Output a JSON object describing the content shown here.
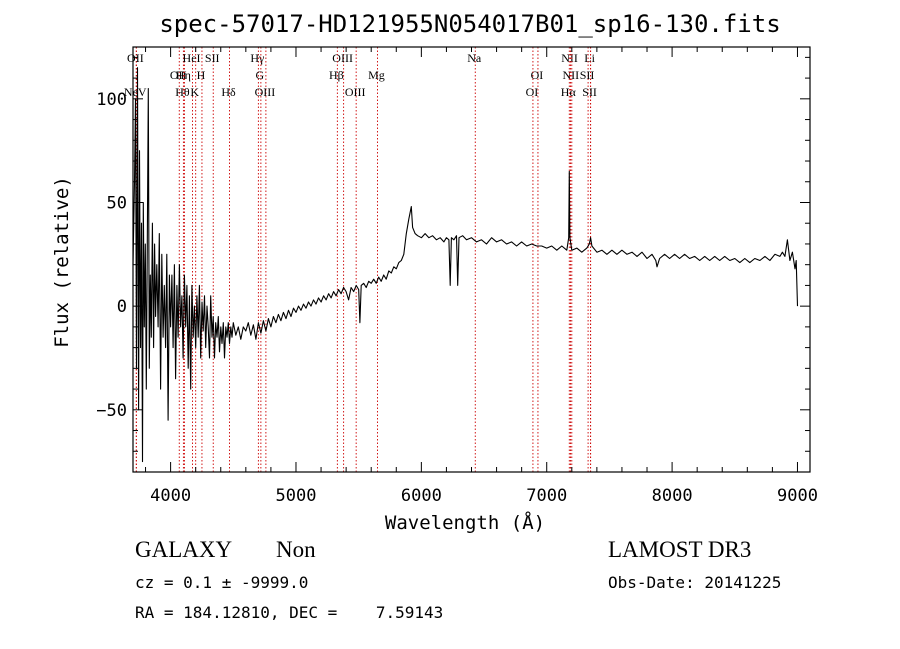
{
  "chart_data": {
    "type": "line",
    "title": "spec-57017-HD121955N054017B01_sp16-130.fits",
    "xlabel": "Wavelength (Å)",
    "ylabel": "Flux (relative)",
    "xlim": [
      3700,
      9100
    ],
    "ylim": [
      -80,
      125
    ],
    "xticks": [
      4000,
      5000,
      6000,
      7000,
      8000,
      9000
    ],
    "yticks": [
      -50,
      0,
      50,
      100
    ],
    "x_tick_labels": [
      "4000",
      "5000",
      "6000",
      "7000",
      "8000",
      "9000"
    ],
    "y_tick_labels": [
      "−50",
      "0",
      "50",
      "100"
    ],
    "series": [
      {
        "name": "spectrum",
        "points": [
          [
            3700,
            20
          ],
          [
            3712,
            60
          ],
          [
            3720,
            100
          ],
          [
            3728,
            -30
          ],
          [
            3736,
            115
          ],
          [
            3745,
            -50
          ],
          [
            3752,
            75
          ],
          [
            3760,
            -20
          ],
          [
            3768,
            40
          ],
          [
            3776,
            -75
          ],
          [
            3782,
            50
          ],
          [
            3790,
            -10
          ],
          [
            3798,
            30
          ],
          [
            3806,
            -40
          ],
          [
            3814,
            30
          ],
          [
            3822,
            105
          ],
          [
            3830,
            -30
          ],
          [
            3838,
            15
          ],
          [
            3846,
            -15
          ],
          [
            3855,
            40
          ],
          [
            3864,
            -20
          ],
          [
            3872,
            30
          ],
          [
            3880,
            -5
          ],
          [
            3890,
            20
          ],
          [
            3900,
            -10
          ],
          [
            3910,
            35
          ],
          [
            3920,
            -40
          ],
          [
            3930,
            25
          ],
          [
            3940,
            -15
          ],
          [
            3950,
            10
          ],
          [
            3960,
            -20
          ],
          [
            3970,
            25
          ],
          [
            3980,
            -55
          ],
          [
            3990,
            15
          ],
          [
            4000,
            -10
          ],
          [
            4010,
            15
          ],
          [
            4020,
            -20
          ],
          [
            4030,
            20
          ],
          [
            4040,
            -35
          ],
          [
            4050,
            10
          ],
          [
            4060,
            -15
          ],
          [
            4070,
            20
          ],
          [
            4080,
            -10
          ],
          [
            4090,
            5
          ],
          [
            4100,
            -25
          ],
          [
            4110,
            15
          ],
          [
            4120,
            -10
          ],
          [
            4130,
            10
          ],
          [
            4140,
            -30
          ],
          [
            4150,
            5
          ],
          [
            4160,
            -40
          ],
          [
            4170,
            10
          ],
          [
            4180,
            -15
          ],
          [
            4190,
            0
          ],
          [
            4200,
            -20
          ],
          [
            4210,
            5
          ],
          [
            4220,
            -15
          ],
          [
            4230,
            10
          ],
          [
            4240,
            -25
          ],
          [
            4250,
            2
          ],
          [
            4260,
            -12
          ],
          [
            4270,
            5
          ],
          [
            4280,
            -20
          ],
          [
            4290,
            0
          ],
          [
            4300,
            -10
          ],
          [
            4310,
            -25
          ],
          [
            4320,
            5
          ],
          [
            4330,
            -15
          ],
          [
            4340,
            -5
          ],
          [
            4350,
            -25
          ],
          [
            4360,
            -8
          ],
          [
            4370,
            -15
          ],
          [
            4380,
            -5
          ],
          [
            4390,
            -22
          ],
          [
            4400,
            -10
          ],
          [
            4410,
            -18
          ],
          [
            4420,
            -8
          ],
          [
            4430,
            -25
          ],
          [
            4440,
            -10
          ],
          [
            4450,
            -15
          ],
          [
            4460,
            -8
          ],
          [
            4470,
            -18
          ],
          [
            4480,
            -10
          ],
          [
            4490,
            -15
          ],
          [
            4500,
            -8
          ],
          [
            4520,
            -14
          ],
          [
            4540,
            -10
          ],
          [
            4560,
            -16
          ],
          [
            4580,
            -10
          ],
          [
            4600,
            -12
          ],
          [
            4620,
            -8
          ],
          [
            4640,
            -14
          ],
          [
            4660,
            -9
          ],
          [
            4680,
            -16
          ],
          [
            4700,
            -8
          ],
          [
            4720,
            -13
          ],
          [
            4740,
            -7
          ],
          [
            4760,
            -12
          ],
          [
            4780,
            -6
          ],
          [
            4800,
            -10
          ],
          [
            4820,
            -5
          ],
          [
            4840,
            -8
          ],
          [
            4860,
            -4
          ],
          [
            4880,
            -7
          ],
          [
            4900,
            -3
          ],
          [
            4920,
            -6
          ],
          [
            4940,
            -2
          ],
          [
            4960,
            -5
          ],
          [
            4980,
            -1
          ],
          [
            5000,
            -3
          ],
          [
            5020,
            0
          ],
          [
            5040,
            -2
          ],
          [
            5060,
            1
          ],
          [
            5080,
            -1
          ],
          [
            5100,
            2
          ],
          [
            5120,
            0
          ],
          [
            5140,
            3
          ],
          [
            5160,
            1
          ],
          [
            5180,
            4
          ],
          [
            5200,
            2
          ],
          [
            5220,
            5
          ],
          [
            5240,
            3
          ],
          [
            5260,
            6
          ],
          [
            5280,
            4
          ],
          [
            5300,
            7
          ],
          [
            5320,
            5
          ],
          [
            5340,
            8
          ],
          [
            5360,
            6
          ],
          [
            5380,
            9
          ],
          [
            5400,
            7
          ],
          [
            5420,
            3
          ],
          [
            5440,
            9
          ],
          [
            5460,
            7
          ],
          [
            5480,
            10
          ],
          [
            5500,
            8
          ],
          [
            5510,
            -8
          ],
          [
            5520,
            10
          ],
          [
            5540,
            11
          ],
          [
            5560,
            9
          ],
          [
            5580,
            12
          ],
          [
            5600,
            11
          ],
          [
            5620,
            13
          ],
          [
            5640,
            11
          ],
          [
            5660,
            14
          ],
          [
            5680,
            12
          ],
          [
            5700,
            15
          ],
          [
            5720,
            13
          ],
          [
            5740,
            17
          ],
          [
            5760,
            16
          ],
          [
            5780,
            19
          ],
          [
            5800,
            18
          ],
          [
            5820,
            21
          ],
          [
            5840,
            22
          ],
          [
            5860,
            25
          ],
          [
            5880,
            35
          ],
          [
            5900,
            42
          ],
          [
            5920,
            48
          ],
          [
            5930,
            38
          ],
          [
            5950,
            35
          ],
          [
            5970,
            34
          ],
          [
            6000,
            33
          ],
          [
            6030,
            35
          ],
          [
            6060,
            33
          ],
          [
            6090,
            34
          ],
          [
            6120,
            32
          ],
          [
            6150,
            33
          ],
          [
            6180,
            31
          ],
          [
            6200,
            33
          ],
          [
            6220,
            32
          ],
          [
            6230,
            10
          ],
          [
            6240,
            33
          ],
          [
            6260,
            32
          ],
          [
            6280,
            34
          ],
          [
            6290,
            10
          ],
          [
            6300,
            33
          ],
          [
            6330,
            34
          ],
          [
            6360,
            32
          ],
          [
            6400,
            33
          ],
          [
            6440,
            31
          ],
          [
            6480,
            32
          ],
          [
            6520,
            30
          ],
          [
            6560,
            33
          ],
          [
            6600,
            31
          ],
          [
            6640,
            32
          ],
          [
            6680,
            30
          ],
          [
            6720,
            31
          ],
          [
            6760,
            29
          ],
          [
            6800,
            31
          ],
          [
            6840,
            29
          ],
          [
            6880,
            30
          ],
          [
            6920,
            29
          ],
          [
            6960,
            29
          ],
          [
            7000,
            28
          ],
          [
            7040,
            29
          ],
          [
            7080,
            27
          ],
          [
            7120,
            29
          ],
          [
            7160,
            27
          ],
          [
            7175,
            33
          ],
          [
            7180,
            65
          ],
          [
            7185,
            33
          ],
          [
            7200,
            27
          ],
          [
            7240,
            28
          ],
          [
            7280,
            26
          ],
          [
            7320,
            28
          ],
          [
            7340,
            30
          ],
          [
            7350,
            33
          ],
          [
            7360,
            29
          ],
          [
            7400,
            26
          ],
          [
            7440,
            27
          ],
          [
            7480,
            25
          ],
          [
            7520,
            27
          ],
          [
            7560,
            25
          ],
          [
            7600,
            27
          ],
          [
            7640,
            25
          ],
          [
            7680,
            26
          ],
          [
            7720,
            24
          ],
          [
            7760,
            26
          ],
          [
            7800,
            23
          ],
          [
            7840,
            25
          ],
          [
            7870,
            22
          ],
          [
            7880,
            19
          ],
          [
            7900,
            23
          ],
          [
            7940,
            25
          ],
          [
            7980,
            23
          ],
          [
            8020,
            25
          ],
          [
            8060,
            23
          ],
          [
            8100,
            25
          ],
          [
            8140,
            23
          ],
          [
            8180,
            24
          ],
          [
            8220,
            22
          ],
          [
            8260,
            24
          ],
          [
            8300,
            22
          ],
          [
            8340,
            24
          ],
          [
            8380,
            22
          ],
          [
            8420,
            24
          ],
          [
            8460,
            22
          ],
          [
            8500,
            23
          ],
          [
            8540,
            21
          ],
          [
            8580,
            23
          ],
          [
            8620,
            21
          ],
          [
            8660,
            23
          ],
          [
            8700,
            22
          ],
          [
            8740,
            24
          ],
          [
            8780,
            22
          ],
          [
            8820,
            25
          ],
          [
            8860,
            24
          ],
          [
            8880,
            26
          ],
          [
            8900,
            24
          ],
          [
            8920,
            32
          ],
          [
            8940,
            22
          ],
          [
            8960,
            26
          ],
          [
            8980,
            18
          ],
          [
            8990,
            22
          ],
          [
            9000,
            0
          ]
        ]
      }
    ],
    "lines": [
      {
        "name": "NeV",
        "x": 3726,
        "row": 2
      },
      {
        "name": "OII",
        "x": 3727,
        "row": 0
      },
      {
        "name": "OII",
        "x": 4069,
        "row": 1
      },
      {
        "name": "Hθ",
        "x": 4102,
        "row": 2
      },
      {
        "name": "Hη",
        "x": 4110,
        "row": 1
      },
      {
        "name": "HeI",
        "x": 4175,
        "row": 0
      },
      {
        "name": "H",
        "x": 4250,
        "row": 1
      },
      {
        "name": "K",
        "x": 4200,
        "row": 2
      },
      {
        "name": "SII",
        "x": 4340,
        "row": 0
      },
      {
        "name": "Hδ",
        "x": 4470,
        "row": 2
      },
      {
        "name": "Hγ",
        "x": 4700,
        "row": 0
      },
      {
        "name": "G",
        "x": 4720,
        "row": 1
      },
      {
        "name": "OIII",
        "x": 4760,
        "row": 2
      },
      {
        "name": "OIII",
        "x": 5380,
        "row": 0
      },
      {
        "name": "Hβ",
        "x": 5330,
        "row": 1
      },
      {
        "name": "OIII",
        "x": 5480,
        "row": 2
      },
      {
        "name": "Mg",
        "x": 5650,
        "row": 1
      },
      {
        "name": "Na",
        "x": 6430,
        "row": 0
      },
      {
        "name": "OI",
        "x": 6930,
        "row": 1
      },
      {
        "name": "OI",
        "x": 6890,
        "row": 2
      },
      {
        "name": "NII",
        "x": 7190,
        "row": 0
      },
      {
        "name": "NII",
        "x": 7200,
        "row": 1
      },
      {
        "name": "Hα",
        "x": 7180,
        "row": 2
      },
      {
        "name": "Li",
        "x": 7350,
        "row": 0
      },
      {
        "name": "SII",
        "x": 7330,
        "row": 1
      },
      {
        "name": "SII",
        "x": 7350,
        "row": 2
      }
    ],
    "line_color": "#cc0000",
    "spectrum_color": "#000000",
    "grid": false
  },
  "info": {
    "galaxy_label": "GALAXY",
    "class_value": "Non",
    "survey": "LAMOST DR3",
    "cz_line": "cz = 0.1 ± -9999.0",
    "obs_date": "Obs-Date: 20141225",
    "coords": "RA = 184.12810, DEC =    7.59143"
  }
}
